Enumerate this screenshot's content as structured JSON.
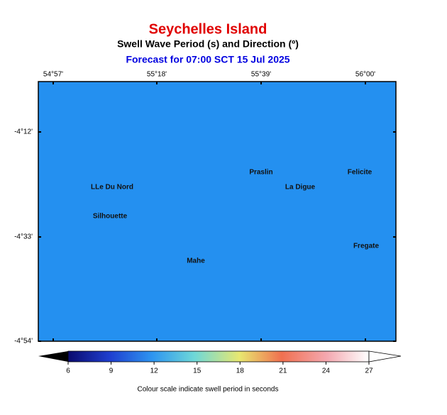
{
  "header": {
    "title": "Seychelles Island",
    "subtitle": "Swell Wave Period (s) and Direction (º)",
    "forecast": "Forecast for  07:00 SCT 15 Jul 2025"
  },
  "map": {
    "lon_labels": [
      "54°57'",
      "55°18'",
      "55°39'",
      "56°00'"
    ],
    "lat_labels": [
      "-4°12'",
      "-4°33'",
      "-4°54'"
    ],
    "places": [
      "Praslin",
      "Felicite",
      "LLe Du Nord",
      "La Digue",
      "Silhouette",
      "Fregate",
      "Mahe"
    ]
  },
  "colorbar": {
    "ticks": [
      6,
      9,
      12,
      15,
      18,
      21,
      24,
      27
    ],
    "caption": "Colour scale indicate swell period in seconds"
  }
}
